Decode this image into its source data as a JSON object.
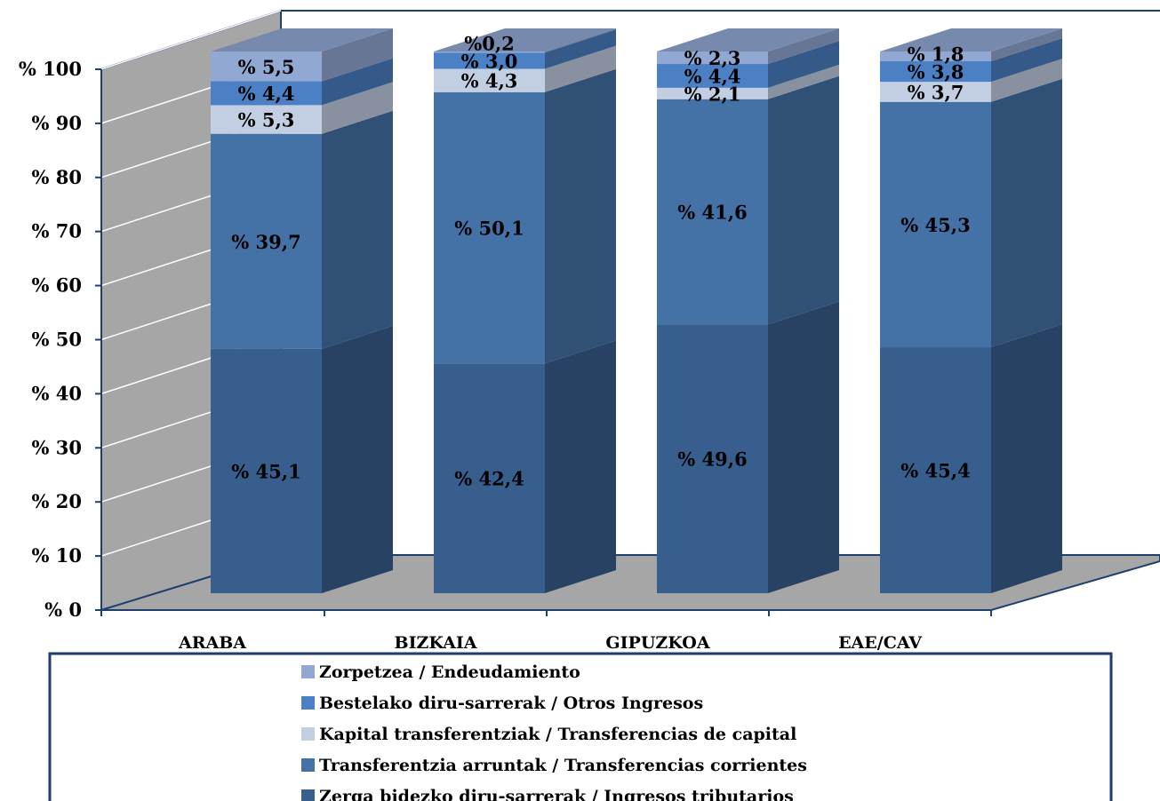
{
  "chart_data": {
    "type": "bar",
    "stacked": true,
    "three_d": true,
    "categories": [
      "ARABA",
      "BIZKAIA",
      "GIPUZKOA",
      "EAE/CAV"
    ],
    "y_ticks": [
      "% 0",
      "% 10",
      "% 20",
      "% 30",
      "% 40",
      "% 50",
      "% 60",
      "% 70",
      "% 80",
      "% 90",
      "% 100"
    ],
    "ylim": [
      0,
      100
    ],
    "legend_position": "bottom",
    "series": [
      {
        "name": "Zerga bidezko diru-sarrerak / Ingresos tributarios",
        "values": [
          45.1,
          42.4,
          49.6,
          45.4
        ],
        "labels": [
          "% 45,1",
          "% 42,4",
          "% 49,6",
          "% 45,4"
        ],
        "color": "#375e8d"
      },
      {
        "name": "Transferentzia arruntak / Transferencias corrientes",
        "values": [
          39.7,
          50.1,
          41.6,
          45.3
        ],
        "labels": [
          "% 39,7",
          "% 50,1",
          "% 41,6",
          "% 45,3"
        ],
        "color": "#4472a7"
      },
      {
        "name": "Kapital transferentziak / Transferencias de capital",
        "values": [
          5.3,
          4.3,
          2.1,
          3.7
        ],
        "labels": [
          "% 5,3",
          "% 4,3",
          "% 2,1",
          "% 3,7"
        ],
        "color": "#c2cfe3"
      },
      {
        "name": "Bestelako diru-sarrerak / Otros Ingresos",
        "values": [
          4.4,
          3.0,
          4.4,
          3.8
        ],
        "labels": [
          "% 4,4",
          "% 3,0",
          "% 4,4",
          "% 3,8"
        ],
        "color": "#4b80c4"
      },
      {
        "name": "Zorpetzea / Endeudamiento",
        "values": [
          5.5,
          0.2,
          2.3,
          1.8
        ],
        "labels": [
          "% 5,5",
          "%0,2",
          "% 2,3",
          "% 1,8"
        ],
        "color": "#91a8d3"
      }
    ]
  }
}
